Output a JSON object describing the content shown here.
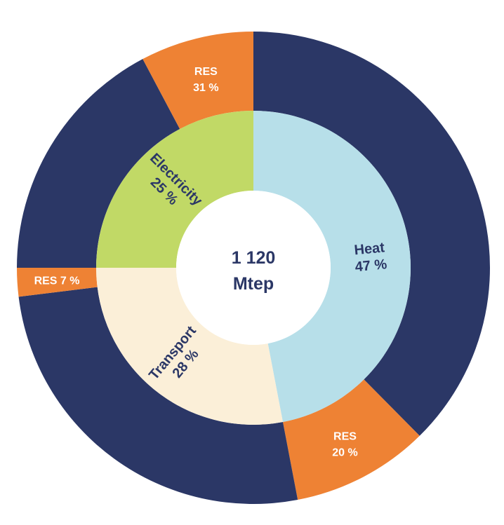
{
  "chart_data": {
    "type": "pie",
    "center": {
      "line1": "1 120",
      "line2": "Mtep"
    },
    "inner_ring": [
      {
        "name": "Heat",
        "pct_label": "47 %",
        "value": 47,
        "color": "#b7dfe9",
        "text_color": "#2b3766"
      },
      {
        "name": "Transport",
        "pct_label": "28 %",
        "value": 28,
        "color": "#fbefd8",
        "text_color": "#2b3766"
      },
      {
        "name": "Electricity",
        "pct_label": "25 %",
        "value": 25,
        "color": "#c1d966",
        "text_color": "#2b3766"
      }
    ],
    "outer_ring": [
      {
        "parent": "Heat",
        "name": "RES",
        "pct_label": "20 %",
        "share_of_parent": 20
      },
      {
        "parent": "Transport",
        "name": "RES",
        "pct_label": "7 %",
        "share_of_parent": 7
      },
      {
        "parent": "Electricity",
        "name": "RES",
        "pct_label": "31 %",
        "share_of_parent": 31
      }
    ],
    "colors": {
      "res": "#ee8234",
      "non_res": "#2b3766",
      "center_text": "#2b3766",
      "center_fill": "#ffffff"
    }
  }
}
